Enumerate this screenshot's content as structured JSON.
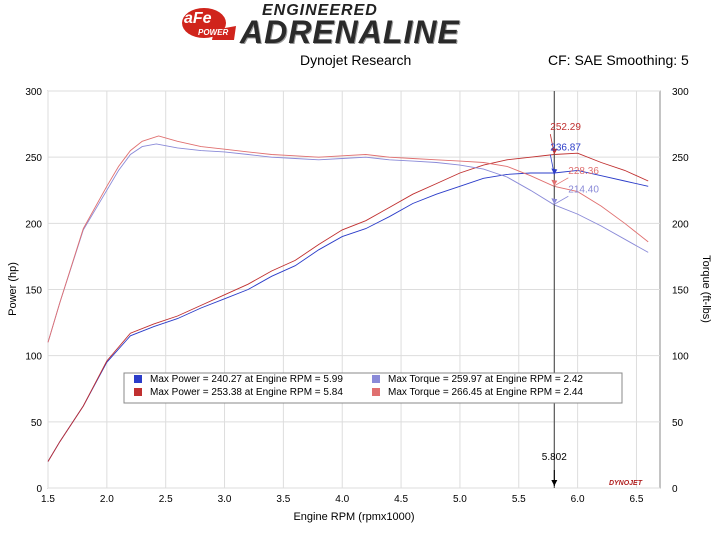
{
  "header": {
    "brand_top": "ENGINEERED",
    "brand_main": "ADRENALINE",
    "brand_badge": "aFe",
    "brand_badge_sub": "POWER",
    "subtitle_left": "Dynojet Research",
    "subtitle_right": "CF: SAE Smoothing: 5"
  },
  "colors": {
    "blue": "#2b3cc9",
    "red": "#c03030",
    "light_blue": "#8a8ad8",
    "light_red": "#e07070",
    "badge_red": "#d0241c"
  },
  "chart_data": {
    "type": "line",
    "xlabel": "Engine RPM (rpmx1000)",
    "ylabel_left": "Power (hp)",
    "ylabel_right": "Torque (ft-lbs)",
    "xlim": [
      1.5,
      6.7
    ],
    "ylim": [
      0,
      300
    ],
    "x_ticks": [
      "1.5",
      "2.0",
      "2.5",
      "3.0",
      "3.5",
      "4.0",
      "4.5",
      "5.0",
      "5.5",
      "6.0",
      "6.5"
    ],
    "y_ticks": [
      "0",
      "50",
      "100",
      "150",
      "200",
      "250",
      "300"
    ],
    "grid": true,
    "cursor": {
      "x": 5.802,
      "label": "5.802"
    },
    "watermark": "DYNOJET",
    "series": [
      {
        "kind": "power",
        "color": "blue",
        "x": [
          1.5,
          1.6,
          1.8,
          2.0,
          2.2,
          2.4,
          2.6,
          2.8,
          3.0,
          3.2,
          3.4,
          3.6,
          3.8,
          4.0,
          4.2,
          4.4,
          4.6,
          4.8,
          5.0,
          5.2,
          5.4,
          5.6,
          5.8,
          6.0,
          6.2,
          6.4,
          6.6
        ],
        "y": [
          20,
          35,
          62,
          95,
          115,
          122,
          128,
          136,
          143,
          150,
          160,
          168,
          180,
          190,
          196,
          205,
          215,
          222,
          228,
          234,
          237,
          238,
          238,
          240,
          236,
          232,
          228
        ]
      },
      {
        "kind": "power",
        "color": "red",
        "x": [
          1.5,
          1.6,
          1.8,
          2.0,
          2.2,
          2.4,
          2.6,
          2.8,
          3.0,
          3.2,
          3.4,
          3.6,
          3.8,
          4.0,
          4.2,
          4.4,
          4.6,
          4.8,
          5.0,
          5.2,
          5.4,
          5.6,
          5.8,
          6.0,
          6.2,
          6.4,
          6.6
        ],
        "y": [
          20,
          35,
          62,
          96,
          117,
          124,
          130,
          138,
          146,
          154,
          164,
          172,
          184,
          195,
          202,
          212,
          222,
          230,
          238,
          244,
          248,
          250,
          252,
          253,
          246,
          240,
          232
        ]
      },
      {
        "kind": "torque",
        "color": "light_blue",
        "x": [
          1.5,
          1.6,
          1.8,
          2.0,
          2.1,
          2.2,
          2.3,
          2.42,
          2.6,
          2.8,
          3.0,
          3.2,
          3.4,
          3.6,
          3.8,
          4.0,
          4.2,
          4.4,
          4.6,
          4.8,
          5.0,
          5.2,
          5.4,
          5.6,
          5.8,
          6.0,
          6.2,
          6.4,
          6.6
        ],
        "y": [
          110,
          140,
          195,
          225,
          240,
          252,
          258,
          260,
          257,
          255,
          254,
          252,
          250,
          249,
          248,
          249,
          250,
          248,
          247,
          246,
          244,
          241,
          235,
          225,
          214,
          207,
          198,
          188,
          178
        ]
      },
      {
        "kind": "torque",
        "color": "light_red",
        "x": [
          1.5,
          1.6,
          1.8,
          2.0,
          2.1,
          2.2,
          2.3,
          2.44,
          2.6,
          2.8,
          3.0,
          3.2,
          3.4,
          3.6,
          3.8,
          4.0,
          4.2,
          4.4,
          4.6,
          4.8,
          5.0,
          5.2,
          5.4,
          5.6,
          5.8,
          6.0,
          6.2,
          6.4,
          6.6
        ],
        "y": [
          110,
          140,
          196,
          228,
          243,
          255,
          262,
          266,
          262,
          258,
          256,
          254,
          252,
          251,
          250,
          251,
          252,
          250,
          249,
          248,
          247,
          246,
          243,
          236,
          228,
          224,
          213,
          200,
          186
        ]
      }
    ],
    "annotations": [
      {
        "text": "252.29",
        "x": 5.802,
        "y": 252.29,
        "color": "red",
        "dx": -4,
        "dy": -24
      },
      {
        "text": "236.87",
        "x": 5.802,
        "y": 236.87,
        "color": "blue",
        "dx": -4,
        "dy": -24
      },
      {
        "text": "228.36",
        "x": 5.802,
        "y": 228.36,
        "color": "light_red",
        "dx": 14,
        "dy": -12
      },
      {
        "text": "214.40",
        "x": 5.802,
        "y": 214.4,
        "color": "light_blue",
        "dx": 14,
        "dy": -12
      }
    ],
    "legend": {
      "placement": "center-bottom",
      "entries": [
        {
          "color": "blue",
          "text": "Max Power = 240.27 at Engine RPM = 5.99"
        },
        {
          "color": "red",
          "text": "Max Power = 253.38 at Engine RPM = 5.84"
        },
        {
          "color": "light_blue",
          "text": "Max Torque = 259.97 at Engine RPM = 2.42"
        },
        {
          "color": "light_red",
          "text": "Max Torque = 266.45 at Engine RPM = 2.44"
        }
      ]
    }
  }
}
